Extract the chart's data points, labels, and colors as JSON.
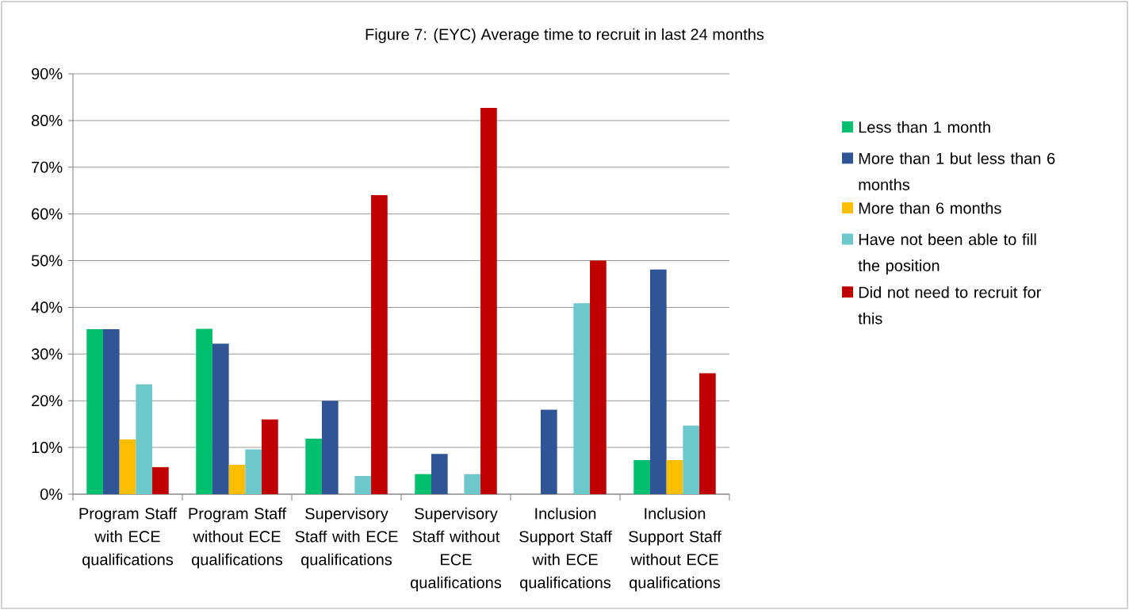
{
  "chart_data": {
    "type": "bar",
    "title": "Figure 7: (EYC) Average time to recruit in last 24 months",
    "categories": [
      "Program Staff with ECE qualifications",
      "Program Staff without ECE qualifications",
      "Supervisory Staff with ECE qualifications",
      "Supervisory Staff without ECE qualifications",
      "Inclusion Support Staff with ECE qualifications",
      "Inclusion Support Staff without ECE qualifications"
    ],
    "series": [
      {
        "name": "Less than 1 month",
        "color": "#00c06e",
        "values": [
          35.3,
          35.4,
          11.9,
          4.3,
          0,
          7.3
        ]
      },
      {
        "name": "More than 1 but less than 6 months",
        "color": "#2f5597",
        "values": [
          35.3,
          32.2,
          20.0,
          8.6,
          18.1,
          48.1
        ]
      },
      {
        "name": "More than 6 months",
        "color": "#fbbf00",
        "values": [
          11.7,
          6.3,
          0,
          0,
          0,
          7.3
        ]
      },
      {
        "name": "Have not been able to fill the position",
        "color": "#6dc8cc",
        "values": [
          23.5,
          9.6,
          3.9,
          4.3,
          40.9,
          14.7
        ]
      },
      {
        "name": "Did not need to recruit for this",
        "color": "#c00000",
        "values": [
          5.8,
          16.0,
          64.0,
          82.7,
          50.0,
          25.9
        ]
      }
    ],
    "ylim": [
      0,
      90
    ],
    "yticks": [
      {
        "value": 0,
        "label": "0%"
      },
      {
        "value": 10,
        "label": "10%"
      },
      {
        "value": 20,
        "label": "20%"
      },
      {
        "value": 30,
        "label": "30%"
      },
      {
        "value": 40,
        "label": "40%"
      },
      {
        "value": 50,
        "label": "50%"
      },
      {
        "value": 60,
        "label": "60%"
      },
      {
        "value": 70,
        "label": "70%"
      },
      {
        "value": 80,
        "label": "80%"
      },
      {
        "value": 90,
        "label": "90%"
      }
    ],
    "grid": "y",
    "legend": "right"
  }
}
